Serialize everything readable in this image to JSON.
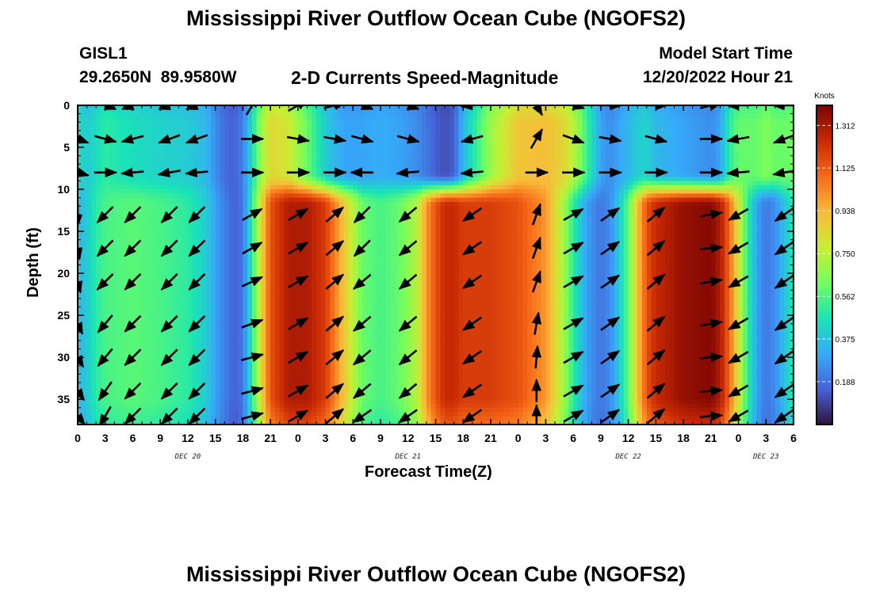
{
  "page": {
    "title": "Mississippi River Outflow Ocean Cube (NGOFS2)",
    "title_repeat": "Mississippi River Outflow Ocean Cube (NGOFS2)",
    "station_id": "GISL1",
    "station_coords": "29.2650N  89.9580W",
    "plot_subtitle": "2-D Currents Speed-Magnitude",
    "model_start_label": "Model Start Time",
    "model_start_value": "12/20/2022 Hour 21"
  },
  "chart_data": {
    "type": "heatmap",
    "title": "2-D Currents Speed-Magnitude",
    "xlabel": "Forecast Time(Z)",
    "ylabel": "Depth (ft)",
    "colorbar_label": "Knots",
    "colorbar_ticks": [
      0.188,
      0.375,
      0.562,
      0.75,
      0.938,
      1.125,
      1.312
    ],
    "colorbar_tick_labels": [
      "0.188",
      "0.375",
      "0.562",
      "0.750",
      "0.938",
      "1.125",
      "1.312"
    ],
    "colorbar_range": [
      0,
      1.4
    ],
    "colorscale": [
      "#30123b",
      "#4662d7",
      "#36aaf9",
      "#1ae4b6",
      "#72fe5e",
      "#c7ef34",
      "#faba39",
      "#f66b19",
      "#ca2a04",
      "#7a0403"
    ],
    "x_range_hours": [
      0,
      78
    ],
    "x_ticks_hours": [
      0,
      3,
      6,
      9,
      12,
      15,
      18,
      21,
      24,
      27,
      30,
      33,
      36,
      39,
      42,
      45,
      48,
      51,
      54,
      57,
      60,
      63,
      66,
      69,
      72,
      75,
      78
    ],
    "x_tick_labels": [
      "0",
      "3",
      "6",
      "9",
      "12",
      "15",
      "18",
      "21",
      "0",
      "3",
      "6",
      "9",
      "12",
      "15",
      "18",
      "21",
      "0",
      "3",
      "6",
      "9",
      "12",
      "15",
      "18",
      "21",
      "0",
      "3",
      "6"
    ],
    "date_labels": [
      {
        "label": "DEC 20",
        "hour": 12
      },
      {
        "label": "DEC 21",
        "hour": 36
      },
      {
        "label": "DEC 22",
        "hour": 60
      },
      {
        "label": "DEC 23",
        "hour": 75
      }
    ],
    "y_range_ft": [
      0,
      38
    ],
    "y_ticks": [
      0,
      5,
      10,
      15,
      20,
      25,
      30,
      35
    ],
    "y_reversed": true,
    "surface_layer_depth_ft": 10,
    "speed_profile": {
      "hours": [
        0,
        1,
        2,
        3,
        6,
        9,
        12,
        14,
        15,
        16,
        17,
        18,
        19,
        20,
        21,
        23,
        25,
        27,
        29,
        31,
        33,
        35,
        37,
        38,
        39,
        40,
        41,
        42,
        45,
        48,
        51,
        53,
        54,
        55,
        56,
        57,
        58,
        59,
        60,
        61,
        62,
        63,
        66,
        69,
        70,
        71,
        72,
        73,
        74,
        75,
        76,
        78
      ],
      "surface_knots": [
        0.45,
        0.4,
        0.45,
        0.5,
        0.45,
        0.42,
        0.4,
        0.35,
        0.25,
        0.18,
        0.15,
        0.22,
        0.45,
        0.7,
        0.85,
        0.8,
        0.6,
        0.4,
        0.3,
        0.3,
        0.32,
        0.3,
        0.25,
        0.2,
        0.15,
        0.12,
        0.15,
        0.35,
        0.7,
        0.9,
        0.92,
        0.85,
        0.75,
        0.6,
        0.45,
        0.3,
        0.25,
        0.3,
        0.35,
        0.4,
        0.42,
        0.35,
        0.3,
        0.25,
        0.3,
        0.5,
        0.6,
        0.6,
        0.6,
        0.65,
        0.6,
        0.62
      ],
      "deep_knots": [
        0.35,
        0.4,
        0.5,
        0.55,
        0.58,
        0.55,
        0.5,
        0.4,
        0.3,
        0.22,
        0.15,
        0.2,
        0.5,
        0.85,
        1.15,
        1.3,
        1.3,
        1.2,
        0.9,
        0.6,
        0.55,
        0.6,
        0.75,
        1.0,
        1.15,
        1.25,
        1.25,
        1.2,
        1.2,
        1.15,
        1.0,
        0.7,
        0.5,
        0.35,
        0.25,
        0.2,
        0.25,
        0.4,
        0.6,
        0.9,
        1.15,
        1.25,
        1.35,
        1.38,
        1.3,
        1.1,
        0.8,
        0.5,
        0.3,
        0.2,
        0.25,
        0.5
      ]
    },
    "vectors": {
      "rows_depth_ft": [
        0,
        4,
        8,
        13,
        17,
        21,
        26,
        30,
        34,
        37
      ],
      "samples": [
        {
          "hour": 0,
          "row_angles_deg": [
            null,
            20,
            15,
            90,
            80,
            75,
            65,
            60,
            55,
            50
          ]
        },
        {
          "hour": 3,
          "row_angles_deg": [
            20,
            15,
            0,
            135,
            135,
            135,
            130,
            130,
            125,
            120
          ]
        },
        {
          "hour": 6,
          "row_angles_deg": [
            160,
            165,
            175,
            135,
            135,
            135,
            135,
            135,
            135,
            135
          ]
        },
        {
          "hour": 10,
          "row_angles_deg": [
            160,
            160,
            170,
            135,
            135,
            135,
            135,
            135,
            135,
            135
          ]
        },
        {
          "hour": 13,
          "row_angles_deg": [
            160,
            160,
            175,
            135,
            135,
            135,
            135,
            135,
            135,
            135
          ]
        },
        {
          "hour": 19,
          "row_angles_deg": [
            300,
            0,
            0,
            330,
            330,
            335,
            340,
            345,
            345,
            345
          ]
        },
        {
          "hour": 24,
          "row_angles_deg": [
            330,
            10,
            0,
            330,
            330,
            330,
            330,
            330,
            330,
            330
          ]
        },
        {
          "hour": 28,
          "row_angles_deg": [
            345,
            10,
            0,
            320,
            320,
            320,
            320,
            320,
            320,
            320
          ]
        },
        {
          "hour": 31,
          "row_angles_deg": [
            20,
            15,
            180,
            135,
            135,
            140,
            140,
            140,
            140,
            145
          ]
        },
        {
          "hour": 36,
          "row_angles_deg": [
            20,
            15,
            175,
            140,
            140,
            140,
            140,
            140,
            140,
            145
          ]
        },
        {
          "hour": 43,
          "row_angles_deg": [
            175,
            165,
            175,
            145,
            145,
            145,
            145,
            145,
            145,
            145
          ]
        },
        {
          "hour": 50,
          "row_angles_deg": [
            60,
            300,
            0,
            290,
            290,
            290,
            280,
            275,
            270,
            270
          ]
        },
        {
          "hour": 54,
          "row_angles_deg": [
            15,
            20,
            0,
            330,
            330,
            330,
            330,
            330,
            330,
            330
          ]
        },
        {
          "hour": 58,
          "row_angles_deg": [
            0,
            10,
            0,
            325,
            325,
            325,
            325,
            325,
            325,
            325
          ]
        },
        {
          "hour": 63,
          "row_angles_deg": [
            0,
            15,
            0,
            320,
            320,
            320,
            320,
            320,
            320,
            320
          ]
        },
        {
          "hour": 69,
          "row_angles_deg": [
            345,
            0,
            0,
            350,
            355,
            350,
            350,
            355,
            355,
            355
          ]
        },
        {
          "hour": 72,
          "row_angles_deg": [
            180,
            170,
            175,
            150,
            150,
            150,
            150,
            150,
            150,
            150
          ]
        },
        {
          "hour": 77,
          "row_angles_deg": [
            180,
            160,
            170,
            145,
            145,
            145,
            145,
            145,
            145,
            145
          ]
        }
      ]
    }
  }
}
